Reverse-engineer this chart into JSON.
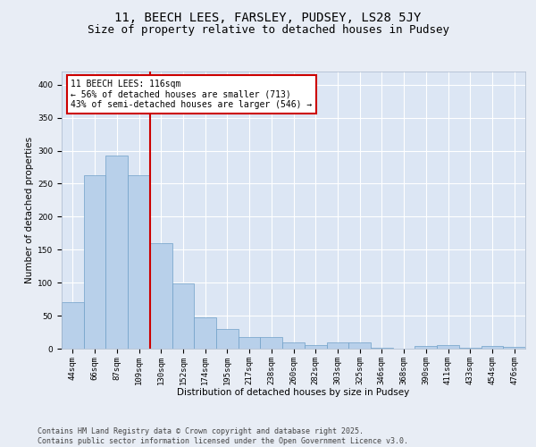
{
  "title": "11, BEECH LEES, FARSLEY, PUDSEY, LS28 5JY",
  "subtitle": "Size of property relative to detached houses in Pudsey",
  "xlabel": "Distribution of detached houses by size in Pudsey",
  "ylabel": "Number of detached properties",
  "categories": [
    "44sqm",
    "66sqm",
    "87sqm",
    "109sqm",
    "130sqm",
    "152sqm",
    "174sqm",
    "195sqm",
    "217sqm",
    "238sqm",
    "260sqm",
    "282sqm",
    "303sqm",
    "325sqm",
    "346sqm",
    "368sqm",
    "390sqm",
    "411sqm",
    "433sqm",
    "454sqm",
    "476sqm"
  ],
  "values": [
    70,
    263,
    293,
    263,
    160,
    99,
    47,
    30,
    17,
    17,
    9,
    5,
    9,
    9,
    1,
    0,
    4,
    5,
    1,
    4,
    3
  ],
  "bar_color": "#b8d0ea",
  "bar_edge_color": "#6fa0c8",
  "annotation_text": "11 BEECH LEES: 116sqm\n← 56% of detached houses are smaller (713)\n43% of semi-detached houses are larger (546) →",
  "annotation_box_color": "#ffffff",
  "annotation_box_edge": "#cc0000",
  "vline_color": "#cc0000",
  "vline_x": 3.5,
  "ylim": [
    0,
    420
  ],
  "yticks": [
    0,
    50,
    100,
    150,
    200,
    250,
    300,
    350,
    400
  ],
  "background_color": "#e8edf5",
  "plot_bg_color": "#dce6f4",
  "grid_color": "#ffffff",
  "footer": "Contains HM Land Registry data © Crown copyright and database right 2025.\nContains public sector information licensed under the Open Government Licence v3.0.",
  "title_fontsize": 10,
  "subtitle_fontsize": 9,
  "axis_label_fontsize": 7.5,
  "tick_fontsize": 6.5,
  "footer_fontsize": 6,
  "annotation_fontsize": 7
}
